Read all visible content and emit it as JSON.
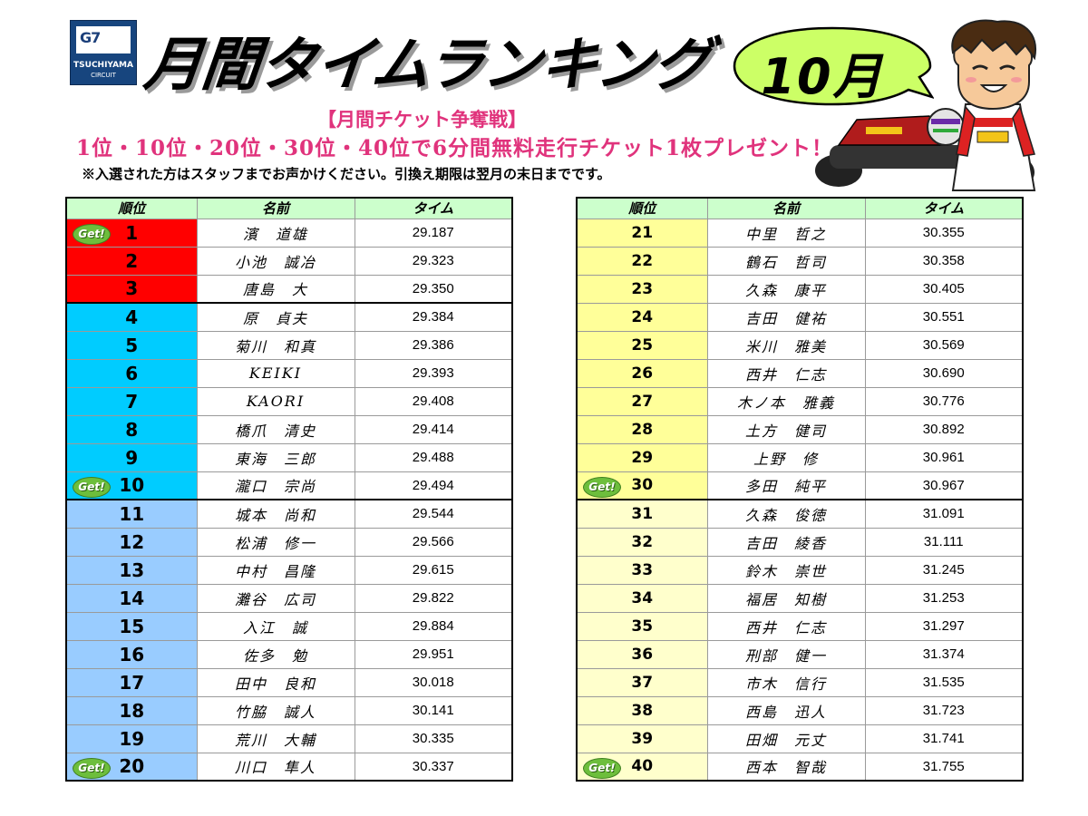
{
  "logo": {
    "mark": "G7",
    "line1": "TSUCHIYAMA",
    "line2": "CIRCUIT"
  },
  "title": "月間タイムランキング",
  "month": "10月",
  "header": {
    "campaign": "【月間チケット争奪戦】",
    "prize": "1位・10位・20位・30位・40位で6分間無料走行チケット1枚プレゼント！",
    "note": "※入選された方はスタッフまでお声かけください。引換え期限は翌月の末日までです。"
  },
  "columns": {
    "rank": "順位",
    "name": "名前",
    "time": "タイム"
  },
  "badge": "Get!",
  "colors": {
    "red": "#ff0000",
    "cyan": "#00ccff",
    "lightblue": "#99ccff",
    "yellow": "#ffff99",
    "lightyellow": "#ffffcc",
    "header": "#ccffcc",
    "pink": "#e0337c"
  },
  "left_rows": [
    {
      "rank": "1",
      "name": "濱　道雄",
      "time": "29.187",
      "color": "#ff0000",
      "get": true
    },
    {
      "rank": "2",
      "name": "小池　誠冶",
      "time": "29.323",
      "color": "#ff0000",
      "get": false
    },
    {
      "rank": "3",
      "name": "唐島　大",
      "time": "29.350",
      "color": "#ff0000",
      "get": false
    },
    {
      "rank": "4",
      "name": "原　貞夫",
      "time": "29.384",
      "color": "#00ccff",
      "get": false
    },
    {
      "rank": "5",
      "name": "菊川　和真",
      "time": "29.386",
      "color": "#00ccff",
      "get": false
    },
    {
      "rank": "6",
      "name": "KEIKI",
      "time": "29.393",
      "color": "#00ccff",
      "get": false
    },
    {
      "rank": "7",
      "name": "KAORI",
      "time": "29.408",
      "color": "#00ccff",
      "get": false
    },
    {
      "rank": "8",
      "name": "橋爪　清史",
      "time": "29.414",
      "color": "#00ccff",
      "get": false
    },
    {
      "rank": "9",
      "name": "東海　三郎",
      "time": "29.488",
      "color": "#00ccff",
      "get": false
    },
    {
      "rank": "10",
      "name": "瀧口　宗尚",
      "time": "29.494",
      "color": "#00ccff",
      "get": true
    },
    {
      "rank": "11",
      "name": "城本　尚和",
      "time": "29.544",
      "color": "#99ccff",
      "get": false
    },
    {
      "rank": "12",
      "name": "松浦　修一",
      "time": "29.566",
      "color": "#99ccff",
      "get": false
    },
    {
      "rank": "13",
      "name": "中村　昌隆",
      "time": "29.615",
      "color": "#99ccff",
      "get": false
    },
    {
      "rank": "14",
      "name": "灘谷　広司",
      "time": "29.822",
      "color": "#99ccff",
      "get": false
    },
    {
      "rank": "15",
      "name": "入江　誠",
      "time": "29.884",
      "color": "#99ccff",
      "get": false
    },
    {
      "rank": "16",
      "name": "佐多　勉",
      "time": "29.951",
      "color": "#99ccff",
      "get": false
    },
    {
      "rank": "17",
      "name": "田中　良和",
      "time": "30.018",
      "color": "#99ccff",
      "get": false
    },
    {
      "rank": "18",
      "name": "竹脇　誠人",
      "time": "30.141",
      "color": "#99ccff",
      "get": false
    },
    {
      "rank": "19",
      "name": "荒川　大輔",
      "time": "30.335",
      "color": "#99ccff",
      "get": false
    },
    {
      "rank": "20",
      "name": "川口　隼人",
      "time": "30.337",
      "color": "#99ccff",
      "get": true
    }
  ],
  "right_rows": [
    {
      "rank": "21",
      "name": "中里　哲之",
      "time": "30.355",
      "color": "#ffff99",
      "get": false
    },
    {
      "rank": "22",
      "name": "鶴石　哲司",
      "time": "30.358",
      "color": "#ffff99",
      "get": false
    },
    {
      "rank": "23",
      "name": "久森　康平",
      "time": "30.405",
      "color": "#ffff99",
      "get": false
    },
    {
      "rank": "24",
      "name": "吉田　健祐",
      "time": "30.551",
      "color": "#ffff99",
      "get": false
    },
    {
      "rank": "25",
      "name": "米川　雅美",
      "time": "30.569",
      "color": "#ffff99",
      "get": false
    },
    {
      "rank": "26",
      "name": "西井　仁志",
      "time": "30.690",
      "color": "#ffff99",
      "get": false
    },
    {
      "rank": "27",
      "name": "木ノ本　雅義",
      "time": "30.776",
      "color": "#ffff99",
      "get": false
    },
    {
      "rank": "28",
      "name": "土方　健司",
      "time": "30.892",
      "color": "#ffff99",
      "get": false
    },
    {
      "rank": "29",
      "name": "上野　修",
      "time": "30.961",
      "color": "#ffff99",
      "get": false
    },
    {
      "rank": "30",
      "name": "多田　純平",
      "time": "30.967",
      "color": "#ffff99",
      "get": true
    },
    {
      "rank": "31",
      "name": "久森　俊徳",
      "time": "31.091",
      "color": "#ffffcc",
      "get": false
    },
    {
      "rank": "32",
      "name": "吉田　綾香",
      "time": "31.111",
      "color": "#ffffcc",
      "get": false
    },
    {
      "rank": "33",
      "name": "鈴木　崇世",
      "time": "31.245",
      "color": "#ffffcc",
      "get": false
    },
    {
      "rank": "34",
      "name": "福居　知樹",
      "time": "31.253",
      "color": "#ffffcc",
      "get": false
    },
    {
      "rank": "35",
      "name": "西井　仁志",
      "time": "31.297",
      "color": "#ffffcc",
      "get": false
    },
    {
      "rank": "36",
      "name": "刑部　健一",
      "time": "31.374",
      "color": "#ffffcc",
      "get": false
    },
    {
      "rank": "37",
      "name": "市木　信行",
      "time": "31.535",
      "color": "#ffffcc",
      "get": false
    },
    {
      "rank": "38",
      "name": "西島　迅人",
      "time": "31.723",
      "color": "#ffffcc",
      "get": false
    },
    {
      "rank": "39",
      "name": "田畑　元丈",
      "time": "31.741",
      "color": "#ffffcc",
      "get": false
    },
    {
      "rank": "40",
      "name": "西本　智哉",
      "time": "31.755",
      "color": "#ffffcc",
      "get": true
    }
  ]
}
